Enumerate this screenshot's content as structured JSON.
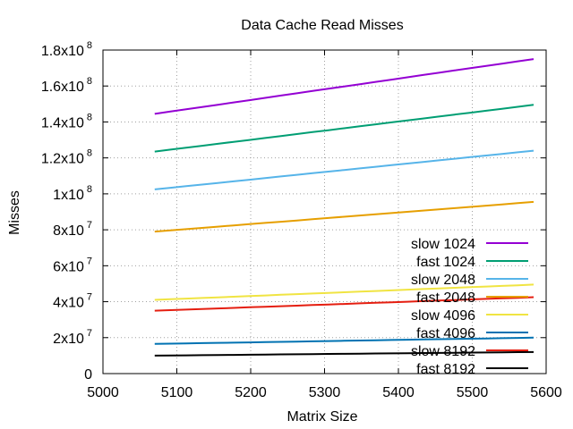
{
  "chart_data": {
    "type": "line",
    "title": "Data Cache Read Misses",
    "xlabel": "Matrix Size",
    "ylabel": "Misses",
    "xlim": [
      5000,
      5600
    ],
    "ylim": [
      0,
      180000000
    ],
    "x_ticks": [
      5000,
      5100,
      5200,
      5300,
      5400,
      5500,
      5600
    ],
    "x_tick_labels": [
      "5000",
      "5100",
      "5200",
      "5300",
      "5400",
      "5500",
      "5600"
    ],
    "y_ticks": [
      0,
      20000000,
      40000000,
      60000000,
      80000000,
      100000000,
      120000000,
      140000000,
      160000000,
      180000000
    ],
    "y_tick_labels": [
      {
        "mantissa": "0",
        "exp": ""
      },
      {
        "mantissa": "2x10",
        "exp": "7"
      },
      {
        "mantissa": "4x10",
        "exp": "7"
      },
      {
        "mantissa": "6x10",
        "exp": "7"
      },
      {
        "mantissa": "8x10",
        "exp": "7"
      },
      {
        "mantissa": "1x10",
        "exp": "8"
      },
      {
        "mantissa": "1.2x10",
        "exp": "8"
      },
      {
        "mantissa": "1.4x10",
        "exp": "8"
      },
      {
        "mantissa": "1.6x10",
        "exp": "8"
      },
      {
        "mantissa": "1.8x10",
        "exp": "8"
      }
    ],
    "grid": true,
    "legend_position": "bottom-right",
    "x": [
      5070,
      5583
    ],
    "series": [
      {
        "name": "slow 1024",
        "color": "#9400d3",
        "values": [
          144500000,
          175000000
        ]
      },
      {
        "name": "fast 1024",
        "color": "#009e73",
        "values": [
          123500000,
          149500000
        ]
      },
      {
        "name": "slow 2048",
        "color": "#56b4e9",
        "values": [
          102500000,
          124000000
        ]
      },
      {
        "name": "fast 2048",
        "color": "#e69f00",
        "values": [
          79000000,
          95500000
        ]
      },
      {
        "name": "slow 4096",
        "color": "#f0e442",
        "values": [
          41000000,
          49500000
        ]
      },
      {
        "name": "fast 4096",
        "color": "#0072b2",
        "values": [
          16500000,
          20000000
        ]
      },
      {
        "name": "slow 8192",
        "color": "#e51e10",
        "values": [
          35000000,
          42500000
        ]
      },
      {
        "name": "fast 8192",
        "color": "#000000",
        "values": [
          10000000,
          12000000
        ]
      }
    ]
  }
}
